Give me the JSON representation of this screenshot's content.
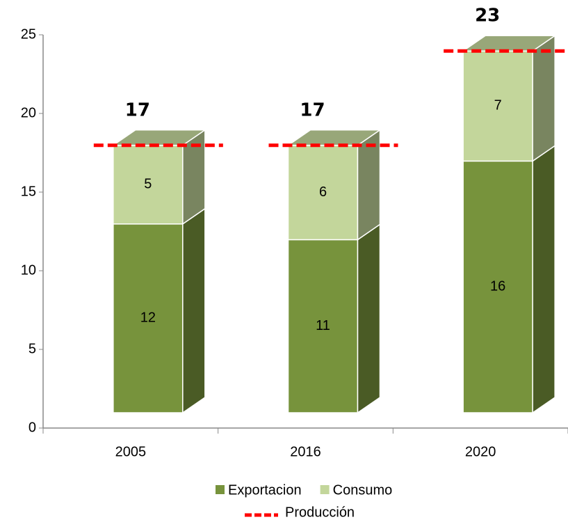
{
  "chart_data": {
    "type": "bar3d",
    "categories": [
      "2005",
      "2016",
      "2020"
    ],
    "series": [
      {
        "name": "Exportacion",
        "color": "#77933c",
        "values": [
          12,
          11,
          16
        ]
      },
      {
        "name": "Consumo",
        "color": "#c3d69b",
        "values": [
          5,
          6,
          7
        ]
      },
      {
        "name": "Producción",
        "type": "line",
        "color": "#ff0000",
        "values": [
          17,
          17,
          23
        ]
      }
    ],
    "stacked": true,
    "ylim": [
      0,
      25
    ],
    "yticks": [
      0,
      5,
      10,
      15,
      20,
      25
    ],
    "legend": "bottom"
  }
}
